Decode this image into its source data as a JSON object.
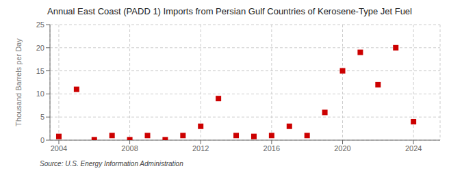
{
  "chart_data": {
    "type": "scatter",
    "title": "Annual East Coast (PADD 1) Imports from Persian Gulf Countries of Kerosene-Type Jet Fuel",
    "ylabel": "Thousand Barrels per Day",
    "annotations": [
      "Source: U.S. Energy Information Administration"
    ],
    "x": [
      2004,
      2005,
      2006,
      2007,
      2008,
      2009,
      2010,
      2011,
      2012,
      2013,
      2014,
      2015,
      2016,
      2017,
      2018,
      2019,
      2020,
      2021,
      2022,
      2023,
      2024
    ],
    "values": [
      0.8,
      11.0,
      0.1,
      1.0,
      0.1,
      1.0,
      0.1,
      1.0,
      3.0,
      9.0,
      1.0,
      0.8,
      1.0,
      3.0,
      1.0,
      6.0,
      15.0,
      19.0,
      12.0,
      20.0,
      4.0
    ],
    "color": "#cc0000",
    "marker": "square",
    "xlim": [
      2003.5,
      2025.5
    ],
    "xticks": [
      2004,
      2008,
      2012,
      2016,
      2020,
      2024
    ],
    "ylim": [
      0,
      25
    ],
    "yticks": [
      0,
      5,
      10,
      15,
      20,
      25
    ],
    "grid": true
  }
}
